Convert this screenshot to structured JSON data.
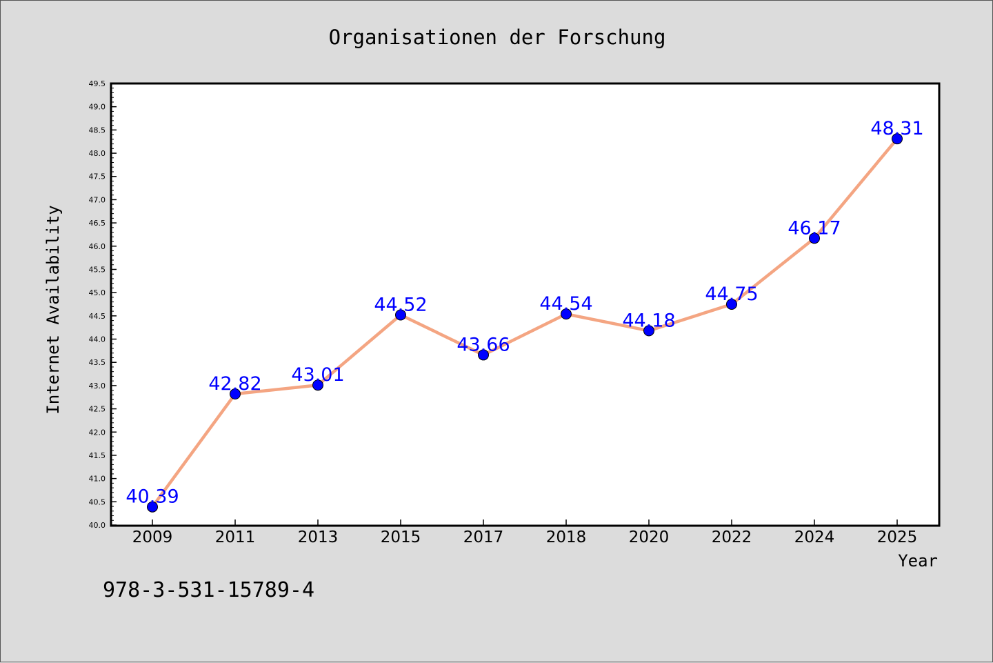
{
  "chart_data": {
    "type": "line",
    "title": "Organisationen der Forschung",
    "xlabel": "Year",
    "ylabel": "Internet Availability",
    "categories": [
      "2009",
      "2011",
      "2013",
      "2015",
      "2017",
      "2018",
      "2020",
      "2022",
      "2024",
      "2025"
    ],
    "values": [
      40.39,
      42.82,
      43.01,
      44.52,
      43.66,
      44.54,
      44.18,
      44.75,
      46.17,
      48.31
    ],
    "data_labels": [
      "40.39",
      "42.82",
      "43.01",
      "44.52",
      "43.66",
      "44.54",
      "44.18",
      "44.75",
      "46.17",
      "48.31"
    ],
    "ylim": [
      40.0,
      49.5
    ],
    "ytick_labels": [
      "40.0",
      "40.5",
      "41.0",
      "41.5",
      "42.0",
      "42.5",
      "43.0",
      "43.5",
      "44.0",
      "44.5",
      "45.0",
      "45.5",
      "46.0",
      "46.5",
      "47.0",
      "47.5",
      "48.0",
      "48.5",
      "49.0",
      "49.5"
    ],
    "grid": false,
    "legend": "none",
    "line_color": "#f4a582",
    "marker_color": "#0000ff",
    "label_color": "#0000ff",
    "annotation": "978-3-531-15789-4"
  }
}
